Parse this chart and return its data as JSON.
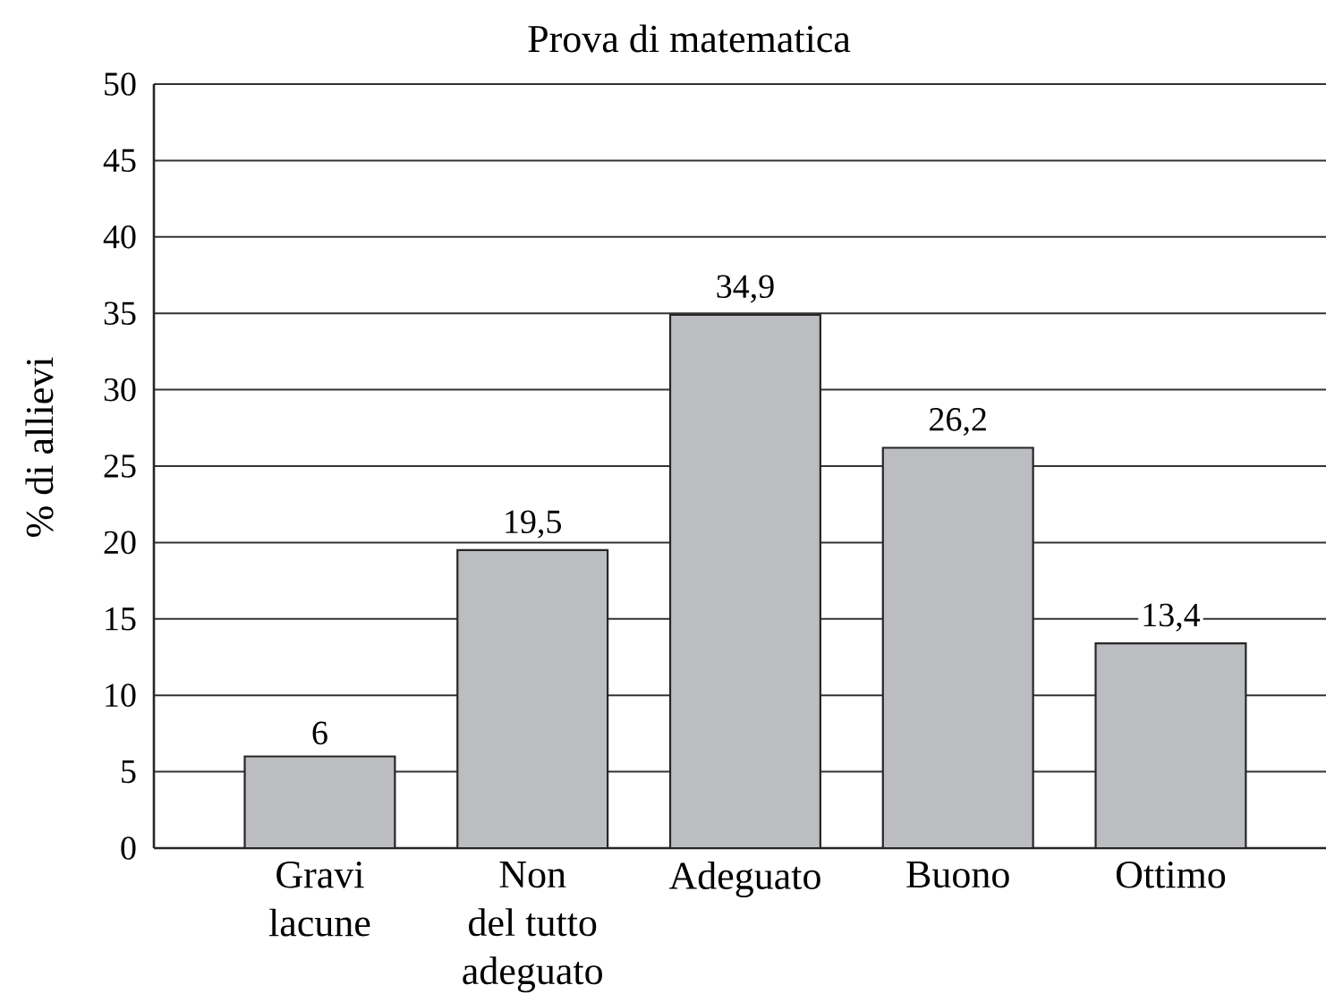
{
  "chart_data": {
    "type": "bar",
    "title": "Prova di matematica",
    "ylabel": "% di allievi",
    "categories": [
      "Gravi\nlacune",
      "Non\ndel tutto\nadeguato",
      "Adeguato",
      "Buono",
      "Ottimo"
    ],
    "values": [
      6,
      19.5,
      34.9,
      26.2,
      13.4
    ],
    "value_labels": [
      "6",
      "19,5",
      "34,9",
      "26,2",
      "13,4"
    ],
    "color": "#bcbdc1",
    "ylim": [
      0,
      50
    ],
    "yticks": [
      0,
      5,
      10,
      15,
      20,
      25,
      30,
      35,
      40,
      45,
      50
    ],
    "grid": "y"
  }
}
